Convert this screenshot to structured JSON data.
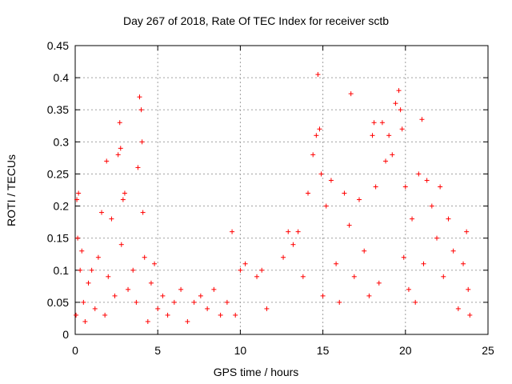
{
  "chart_data": {
    "type": "scatter",
    "title": "Day 267 of 2018, Rate Of TEC Index for receiver sctb",
    "xlabel": "GPS time / hours",
    "ylabel": "ROTI / TECUs",
    "xlim": [
      0,
      25
    ],
    "ylim": [
      0,
      0.45
    ],
    "xticks": [
      0,
      5,
      10,
      15,
      20,
      25
    ],
    "xtick_labels": [
      "0",
      "5",
      "10",
      "15",
      "20",
      "25"
    ],
    "yticks": [
      0,
      0.05,
      0.1,
      0.15,
      0.2,
      0.25,
      0.3,
      0.35,
      0.4,
      0.45
    ],
    "ytick_labels": [
      "0",
      "0.05",
      "0.1",
      "0.15",
      "0.2",
      "0.25",
      "0.3",
      "0.35",
      "0.4",
      "0.45"
    ],
    "grid": true,
    "marker": "+",
    "color": "#ff0000",
    "series": [
      {
        "name": "ROTI",
        "x": [
          0.05,
          0.1,
          0.15,
          0.2,
          0.3,
          0.4,
          0.5,
          0.6,
          0.8,
          1.0,
          1.2,
          1.4,
          1.6,
          1.8,
          1.9,
          2.0,
          2.2,
          2.4,
          2.6,
          2.7,
          2.75,
          2.8,
          2.9,
          3.0,
          3.2,
          3.5,
          3.7,
          3.8,
          3.9,
          4.0,
          4.05,
          4.1,
          4.2,
          4.4,
          4.6,
          4.8,
          5.0,
          5.3,
          5.6,
          6.0,
          6.4,
          6.8,
          7.2,
          7.6,
          8.0,
          8.4,
          8.8,
          9.2,
          9.5,
          9.7,
          10.0,
          10.3,
          11.0,
          11.3,
          11.6,
          12.6,
          12.9,
          13.2,
          13.5,
          13.8,
          14.1,
          14.4,
          14.6,
          14.7,
          14.8,
          14.9,
          15.0,
          15.2,
          15.5,
          15.8,
          16.0,
          16.3,
          16.6,
          16.7,
          16.9,
          17.2,
          17.5,
          17.8,
          18.0,
          18.1,
          18.2,
          18.4,
          18.6,
          18.8,
          19.0,
          19.2,
          19.4,
          19.6,
          19.7,
          19.8,
          19.9,
          20.0,
          20.2,
          20.4,
          20.6,
          20.8,
          21.0,
          21.1,
          21.3,
          21.6,
          21.9,
          22.1,
          22.3,
          22.6,
          22.9,
          23.2,
          23.5,
          23.7,
          23.8,
          23.9
        ],
        "y": [
          0.03,
          0.21,
          0.15,
          0.22,
          0.1,
          0.13,
          0.05,
          0.02,
          0.08,
          0.1,
          0.04,
          0.12,
          0.19,
          0.03,
          0.27,
          0.09,
          0.18,
          0.06,
          0.28,
          0.33,
          0.29,
          0.14,
          0.21,
          0.22,
          0.07,
          0.1,
          0.05,
          0.26,
          0.37,
          0.35,
          0.3,
          0.19,
          0.12,
          0.02,
          0.08,
          0.11,
          0.04,
          0.06,
          0.03,
          0.05,
          0.07,
          0.02,
          0.05,
          0.06,
          0.04,
          0.07,
          0.03,
          0.05,
          0.16,
          0.03,
          0.1,
          0.11,
          0.09,
          0.1,
          0.04,
          0.12,
          0.16,
          0.14,
          0.16,
          0.09,
          0.22,
          0.28,
          0.31,
          0.405,
          0.32,
          0.25,
          0.06,
          0.2,
          0.24,
          0.11,
          0.05,
          0.22,
          0.17,
          0.375,
          0.09,
          0.21,
          0.13,
          0.06,
          0.31,
          0.33,
          0.23,
          0.08,
          0.33,
          0.27,
          0.31,
          0.28,
          0.36,
          0.38,
          0.35,
          0.32,
          0.12,
          0.23,
          0.07,
          0.18,
          0.05,
          0.25,
          0.335,
          0.11,
          0.24,
          0.2,
          0.15,
          0.23,
          0.09,
          0.18,
          0.13,
          0.04,
          0.11,
          0.16,
          0.07,
          0.03
        ]
      }
    ]
  }
}
